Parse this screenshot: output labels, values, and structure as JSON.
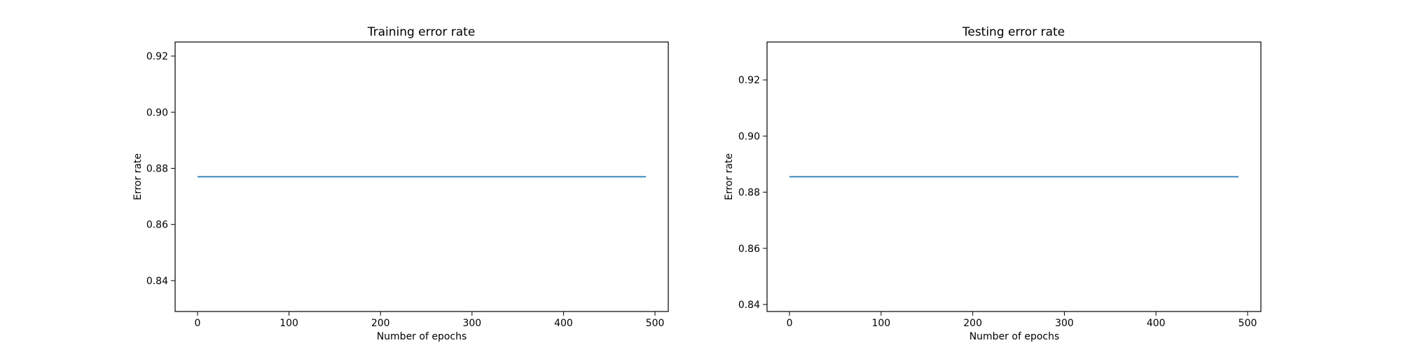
{
  "chart_data": [
    {
      "type": "line",
      "title": "Training error rate",
      "xlabel": "Number of epochs",
      "ylabel": "Error rate",
      "xlim": [
        -24.5,
        514.5
      ],
      "ylim": [
        0.829,
        0.925
      ],
      "xticks": [
        0,
        100,
        200,
        300,
        400,
        500
      ],
      "yticks": [
        0.84,
        0.86,
        0.88,
        0.9,
        0.92
      ],
      "ytick_labels": [
        "0.84",
        "0.86",
        "0.88",
        "0.90",
        "0.92"
      ],
      "grid": false,
      "series": [
        {
          "color": "#1f77b4",
          "x": [
            0,
            490
          ],
          "y": [
            0.877,
            0.877
          ]
        }
      ]
    },
    {
      "type": "line",
      "title": "Testing error rate",
      "xlabel": "Number of epochs",
      "ylabel": "Error rate",
      "xlim": [
        -24.5,
        514.5
      ],
      "ylim": [
        0.8375,
        0.9335
      ],
      "xticks": [
        0,
        100,
        200,
        300,
        400,
        500
      ],
      "yticks": [
        0.84,
        0.86,
        0.88,
        0.9,
        0.92
      ],
      "ytick_labels": [
        "0.84",
        "0.86",
        "0.88",
        "0.90",
        "0.92"
      ],
      "grid": false,
      "series": [
        {
          "color": "#1f77b4",
          "x": [
            0,
            490
          ],
          "y": [
            0.8855,
            0.8855
          ]
        }
      ]
    }
  ]
}
